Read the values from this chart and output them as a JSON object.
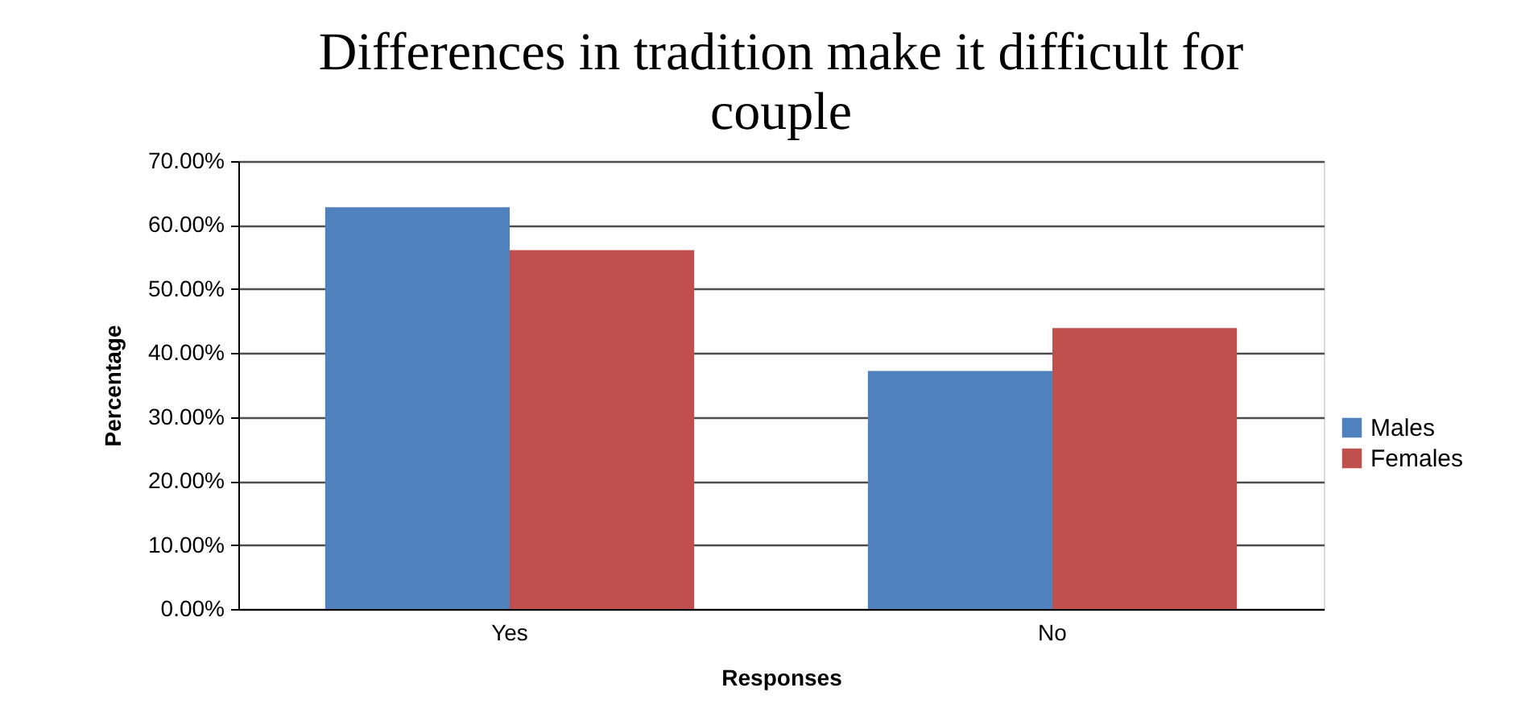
{
  "chart_data": {
    "type": "bar",
    "title": "Differences in tradition make it difficult for couple",
    "xlabel": "Responses",
    "ylabel": "Percentage",
    "categories": [
      "Yes",
      "No"
    ],
    "series": [
      {
        "name": "Males",
        "color": "#4f81bd",
        "values": [
          62.8,
          37.2
        ]
      },
      {
        "name": "Females",
        "color": "#c0504d",
        "values": [
          56.1,
          43.9
        ]
      }
    ],
    "ylim": [
      0,
      70
    ],
    "yticks": [
      {
        "value": 0,
        "label": "0.00%"
      },
      {
        "value": 10,
        "label": "10.00%"
      },
      {
        "value": 20,
        "label": "20.00%"
      },
      {
        "value": 30,
        "label": "30.00%"
      },
      {
        "value": 40,
        "label": "40.00%"
      },
      {
        "value": 50,
        "label": "50.00%"
      },
      {
        "value": 60,
        "label": "60.00%"
      },
      {
        "value": 70,
        "label": "70.00%"
      }
    ],
    "grid": "y",
    "legend": "right"
  }
}
